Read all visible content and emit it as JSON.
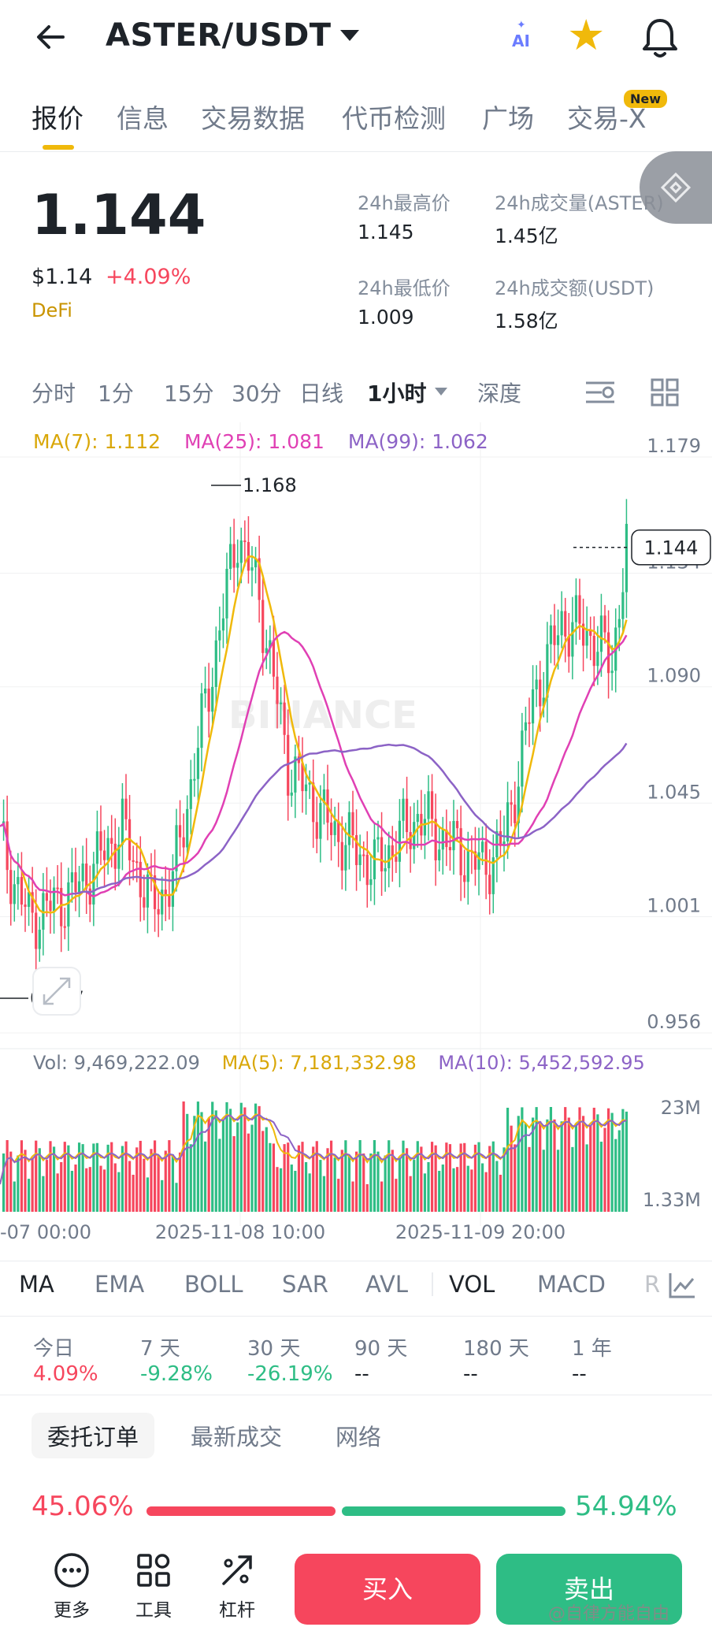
{
  "header": {
    "pair": "ASTER/USDT",
    "ai_label": "AI",
    "icons": [
      "back-arrow-icon",
      "dropdown-caret-icon",
      "ai-sparkle-icon",
      "star-icon",
      "bell-icon"
    ]
  },
  "tabs": [
    {
      "label": "报价",
      "active": true
    },
    {
      "label": "信息"
    },
    {
      "label": "交易数据"
    },
    {
      "label": "代币检测"
    },
    {
      "label": "广场"
    },
    {
      "label": "交易-X",
      "badge": "New"
    }
  ],
  "ticker": {
    "last_price": "1.144",
    "usd_price": "$1.14",
    "change": "+4.09%",
    "tag": "DeFi",
    "high_label": "24h最高价",
    "high_value": "1.145",
    "vol_base_label": "24h成交量(ASTER)",
    "vol_base_value": "1.45亿",
    "low_label": "24h最低价",
    "low_value": "1.009",
    "vol_quote_label": "24h成交额(USDT)",
    "vol_quote_value": "1.58亿"
  },
  "intervals": [
    "分时",
    "1分",
    "15分",
    "30分",
    "日线",
    "1小时",
    "深度"
  ],
  "active_interval": "1小时",
  "ma_legend": {
    "ma7": "MA(7): 1.112",
    "ma25": "MA(25): 1.081",
    "ma99": "MA(99): 1.062"
  },
  "vol_legend": {
    "vol": "Vol: 9,469,222.09",
    "ma5": "MA(5): 7,181,332.98",
    "ma10": "MA(10): 5,452,592.95"
  },
  "chart_data": {
    "type": "candlestick",
    "price_axis": [
      "1.179",
      "1.134",
      "1.090",
      "1.045",
      "1.001",
      "0.956"
    ],
    "high_marker": "1.168",
    "low_marker": "0.967",
    "last_price_label": "1.144",
    "watermark": "BINANCE",
    "volume_axis": [
      "23M",
      "1.33M"
    ],
    "time_axis": [
      "-07 00:00",
      "2025-11-08 10:00",
      "2025-11-09 20:00"
    ],
    "ylim": [
      0.956,
      1.179
    ],
    "colors": {
      "up": "#2ebd85",
      "down": "#f6465d",
      "ma7": "#f0b90b",
      "ma25": "#e040b4",
      "ma99": "#8c63c6"
    }
  },
  "indicators": [
    "MA",
    "EMA",
    "BOLL",
    "SAR",
    "AVL",
    "VOL",
    "MACD",
    "R"
  ],
  "active_indicators": [
    "MA",
    "VOL"
  ],
  "performance": [
    {
      "label": "今日",
      "value": "4.09%",
      "color": "#f6465d"
    },
    {
      "label": "7 天",
      "value": "-9.28%",
      "color": "#2ebd85"
    },
    {
      "label": "30 天",
      "value": "-26.19%",
      "color": "#2ebd85"
    },
    {
      "label": "90 天",
      "value": "--",
      "color": "#1e2329"
    },
    {
      "label": "180 天",
      "value": "--",
      "color": "#1e2329"
    },
    {
      "label": "1 年",
      "value": "--",
      "color": "#1e2329"
    }
  ],
  "orderbook_tabs": [
    "委托订单",
    "最新成交",
    "网络"
  ],
  "ratio": {
    "buy": "45.06%",
    "sell": "54.94%",
    "buy_frac": 0.4506
  },
  "bottom": {
    "more": "更多",
    "tools": "工具",
    "leverage": "杠杆",
    "buy": "买入",
    "sell": "卖出"
  },
  "watermark_text": "@自律方能自由"
}
